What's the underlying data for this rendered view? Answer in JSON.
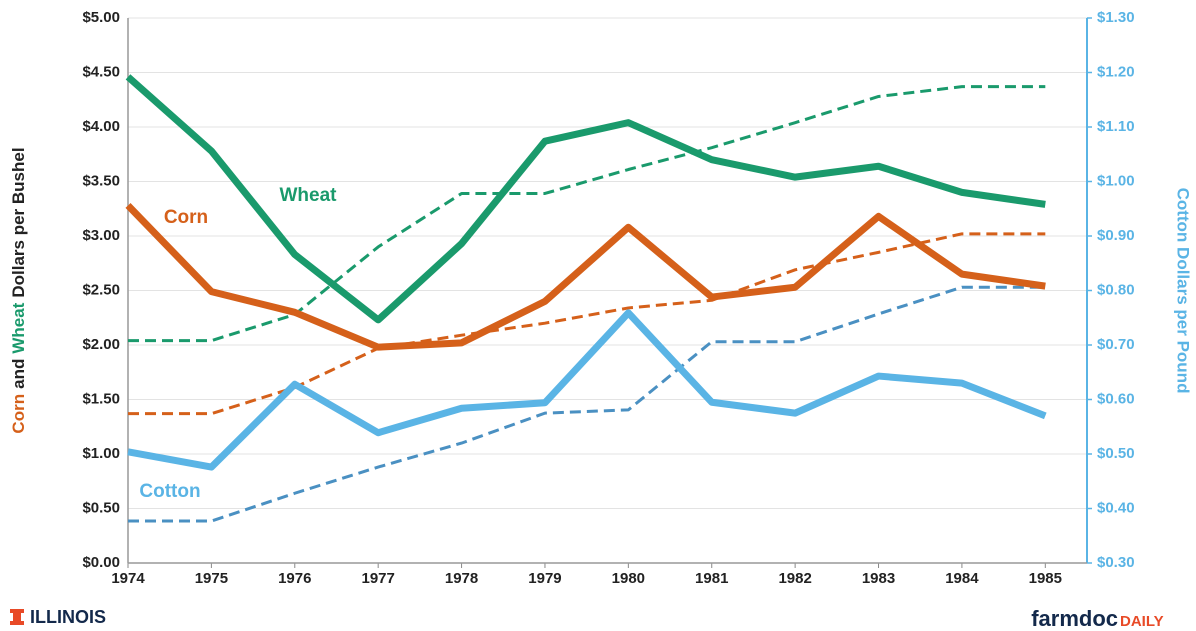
{
  "chart_data": {
    "type": "line",
    "y_label_parts": [
      {
        "text": "Corn",
        "color": "#d5601a"
      },
      {
        "text": "and",
        "color": "#222222"
      },
      {
        "text": "Wheat",
        "color": "#1a9a6c"
      },
      {
        "text": "Dollars per Bushel",
        "color": "#222222"
      }
    ],
    "y2_label": "Cotton Dollars per Pound",
    "x": [
      1974,
      1975,
      1976,
      1977,
      1978,
      1979,
      1980,
      1981,
      1982,
      1983,
      1984,
      1985
    ],
    "xlim": [
      1974,
      1985.5
    ],
    "xticks": [
      1974,
      1975,
      1976,
      1977,
      1978,
      1979,
      1980,
      1981,
      1982,
      1983,
      1984,
      1985
    ],
    "ylim": [
      0,
      5
    ],
    "yticks": [
      {
        "value": 0,
        "label": "$0.00"
      },
      {
        "value": 0.5,
        "label": "$0.50"
      },
      {
        "value": 1,
        "label": "$1.00"
      },
      {
        "value": 1.5,
        "label": "$1.50"
      },
      {
        "value": 2,
        "label": "$2.00"
      },
      {
        "value": 2.5,
        "label": "$2.50"
      },
      {
        "value": 3,
        "label": "$3.00"
      },
      {
        "value": 3.5,
        "label": "$3.50"
      },
      {
        "value": 4,
        "label": "$4.00"
      },
      {
        "value": 4.5,
        "label": "$4.50"
      },
      {
        "value": 5,
        "label": "$5.00"
      }
    ],
    "y2lim": [
      0.3,
      1.3
    ],
    "y2ticks": [
      {
        "value": 0.3,
        "label": "$0.30"
      },
      {
        "value": 0.4,
        "label": "$0.40"
      },
      {
        "value": 0.5,
        "label": "$0.50"
      },
      {
        "value": 0.6,
        "label": "$0.60"
      },
      {
        "value": 0.7,
        "label": "$0.70"
      },
      {
        "value": 0.8,
        "label": "$0.80"
      },
      {
        "value": 0.9,
        "label": "$0.90"
      },
      {
        "value": 1.0,
        "label": "$1.00"
      },
      {
        "value": 1.1,
        "label": "$1.10"
      },
      {
        "value": 1.2,
        "label": "$1.20"
      },
      {
        "value": 1.3,
        "label": "$1.30"
      }
    ],
    "y2_color": "#5ab4e5",
    "grid": true,
    "series": [
      {
        "color": "#1a9a6c",
        "dashed": true,
        "values": [
          2.04,
          2.04,
          2.28,
          2.9,
          3.39,
          3.39,
          3.61,
          3.81,
          4.04,
          4.28,
          4.37,
          4.37
        ]
      },
      {
        "color": "#d5601a",
        "dashed": true,
        "values": [
          1.37,
          1.37,
          1.61,
          1.97,
          2.09,
          2.2,
          2.34,
          2.41,
          2.69,
          2.85,
          3.02,
          3.02
        ]
      },
      {
        "color": "#4a90c2",
        "dashed": true,
        "axis": "y2",
        "values": [
          0.377,
          0.377,
          0.428,
          0.476,
          0.52,
          0.575,
          0.581,
          0.706,
          0.706,
          0.757,
          0.806,
          0.806
        ]
      },
      {
        "name": "Wheat",
        "color": "#1a9a6c",
        "values": [
          4.46,
          3.78,
          2.83,
          2.23,
          2.93,
          3.87,
          4.04,
          3.7,
          3.54,
          3.64,
          3.4,
          3.29
        ]
      },
      {
        "name": "Corn",
        "color": "#d5601a",
        "values": [
          3.28,
          2.49,
          2.3,
          1.98,
          2.02,
          2.4,
          3.08,
          2.44,
          2.53,
          3.18,
          2.65,
          2.54
        ]
      },
      {
        "name": "Cotton",
        "color": "#5ab4e5",
        "axis": "y2",
        "values": [
          0.504,
          0.476,
          0.628,
          0.539,
          0.584,
          0.594,
          0.759,
          0.595,
          0.575,
          0.643,
          0.63,
          0.57
        ]
      }
    ]
  },
  "footer": {
    "left": "ILLINOIS",
    "right_main": "farmdoc",
    "right_accent": "DAILY"
  }
}
